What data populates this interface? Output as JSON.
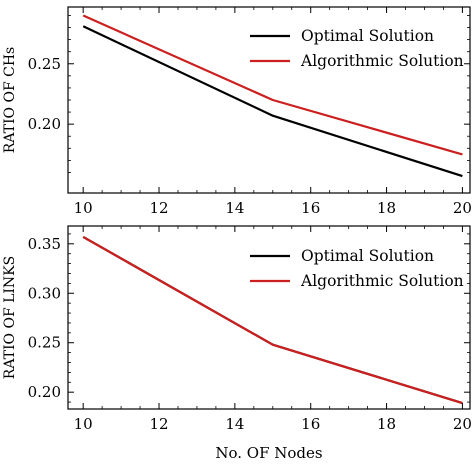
{
  "chart_data": [
    {
      "type": "line",
      "title": "",
      "ylabel": "RATIO OF CHs",
      "xlabel": "",
      "xlim": [
        9.6,
        20.2
      ],
      "ylim": [
        0.143,
        0.297
      ],
      "xticks": [
        "10",
        "12",
        "14",
        "16",
        "18",
        "20"
      ],
      "yticks": [
        "0.20",
        "0.25"
      ],
      "x": [
        10,
        15,
        20
      ],
      "series": [
        {
          "name": "Optimal Solution",
          "color": "#000000",
          "values": [
            0.281,
            0.207,
            0.157
          ]
        },
        {
          "name": "Algorithmic Solution",
          "color": "#cc1f1f",
          "values": [
            0.29,
            0.22,
            0.175
          ]
        }
      ],
      "grid": false,
      "legend": "top-right"
    },
    {
      "type": "line",
      "title": "",
      "ylabel": "RATIO OF LINKS",
      "xlabel": "No. OF Nodes",
      "xlim": [
        9.6,
        20.2
      ],
      "ylim": [
        0.183,
        0.368
      ],
      "xticks": [
        "10",
        "12",
        "14",
        "16",
        "18",
        "20"
      ],
      "yticks": [
        "0.20",
        "0.25",
        "0.30",
        "0.35"
      ],
      "x": [
        10,
        15,
        20
      ],
      "series": [
        {
          "name": "Optimal Solution",
          "color": "#000000",
          "values": [
            0.357,
            0.248,
            0.189
          ]
        },
        {
          "name": "Algorithmic Solution",
          "color": "#cc1f1f",
          "values": [
            0.357,
            0.248,
            0.189
          ]
        }
      ],
      "grid": false,
      "legend": "top-right"
    }
  ]
}
